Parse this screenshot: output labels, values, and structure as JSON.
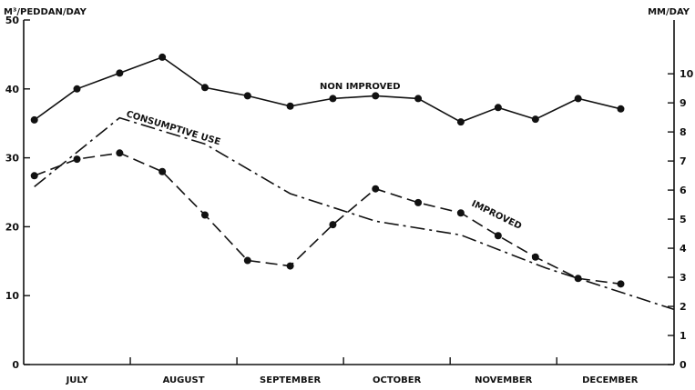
{
  "chart_data": {
    "type": "line",
    "title": "",
    "left_axis": {
      "label": "M³/PEDDAN/DAY",
      "ylim": [
        0,
        50
      ],
      "ticks": [
        0,
        10,
        20,
        30,
        40,
        50
      ]
    },
    "right_axis": {
      "label": "MM/DAY",
      "ylim": [
        0,
        11.85
      ],
      "ticks": [
        0,
        1,
        2,
        3,
        4,
        5,
        6,
        7,
        8,
        9,
        10
      ]
    },
    "months": [
      "JULY",
      "AUGUST",
      "SEPTEMBER",
      "OCTOBER",
      "NOVEMBER",
      "DECEMBER"
    ],
    "x_range": [
      0,
      6.1
    ],
    "series": [
      {
        "name": "NON IMPROVED",
        "style": "solid",
        "markers": true,
        "x": [
          0.1,
          0.5,
          0.9,
          1.3,
          1.7,
          2.1,
          2.5,
          2.9,
          3.3,
          3.7,
          4.1,
          4.45,
          4.8,
          5.2,
          5.6
        ],
        "y": [
          35.5,
          40,
          42.3,
          44.6,
          40.2,
          39,
          37.5,
          38.6,
          39,
          38.6,
          35.2,
          37.3,
          35.6,
          38.6,
          37.1
        ]
      },
      {
        "name": "IMPROVED",
        "style": "dashed",
        "markers": true,
        "x": [
          0.1,
          0.5,
          0.9,
          1.3,
          1.7,
          2.1,
          2.5,
          2.9,
          3.3,
          3.7,
          4.1,
          4.45,
          4.8,
          5.2,
          5.6
        ],
        "y": [
          27.4,
          29.8,
          30.7,
          28,
          21.7,
          15.1,
          14.3,
          20.3,
          25.5,
          23.5,
          22,
          18.7,
          15.6,
          12.5,
          11.7
        ]
      },
      {
        "name": "CONSUMPTIVE USE",
        "style": "dashdot",
        "markers": false,
        "x": [
          0.1,
          0.9,
          1.7,
          2.5,
          3.3,
          4.1,
          4.9,
          5.7,
          6.1
        ],
        "y": [
          25.8,
          35.8,
          32,
          24.8,
          20.8,
          18.8,
          14,
          10,
          8
        ]
      }
    ],
    "grid": false,
    "legend": "inline labels on lines"
  }
}
